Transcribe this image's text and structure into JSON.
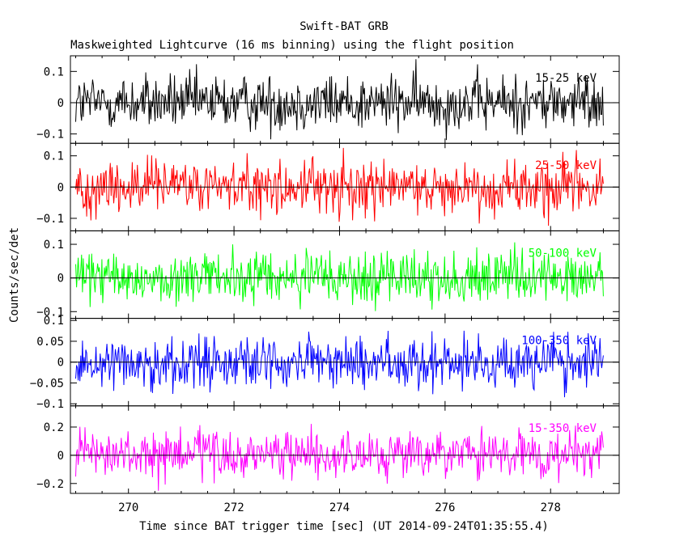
{
  "chart_data": {
    "type": "line",
    "title": "Swift-BAT GRB",
    "subtitle": "Maskweighted Lightcurve (16 ms binning) using the flight position",
    "xlabel": "Time since BAT trigger time [sec] (UT 2014-09-24T01:35:55.4)",
    "ylabel": "Counts/sec/det",
    "xlim": [
      268.9,
      279.3
    ],
    "xticks": [
      "270",
      "272",
      "274",
      "276",
      "278"
    ],
    "xtick_values": [
      270,
      272,
      274,
      276,
      278
    ],
    "x_start": 269.0,
    "x_end": 279.0,
    "bin_width": 0.016,
    "grid": false,
    "panels": [
      {
        "band": "15-25 keV",
        "color": "#000000",
        "ylim": [
          -0.13,
          0.15
        ],
        "yticks": [
          -0.1,
          0,
          0.1
        ],
        "ytick_labels": [
          "−0.1",
          "0",
          "0.1"
        ],
        "noise_sigma": 0.045,
        "baseline": 0
      },
      {
        "band": "25-50 keV",
        "color": "#ff0000",
        "ylim": [
          -0.14,
          0.14
        ],
        "yticks": [
          -0.1,
          0,
          0.1
        ],
        "ytick_labels": [
          "−0.1",
          "0",
          "0.1"
        ],
        "noise_sigma": 0.045,
        "baseline": 0
      },
      {
        "band": "50-100 keV",
        "color": "#00ff00",
        "ylim": [
          -0.12,
          0.14
        ],
        "yticks": [
          -0.1,
          0,
          0.1
        ],
        "ytick_labels": [
          "−0.1",
          "0",
          "0.1"
        ],
        "noise_sigma": 0.04,
        "baseline": 0
      },
      {
        "band": "100-350 keV",
        "color": "#0000ff",
        "ylim": [
          -0.105,
          0.105
        ],
        "yticks": [
          -0.1,
          -0.05,
          0,
          0.05,
          0.1
        ],
        "ytick_labels": [
          "−0.1",
          "−0.05",
          "0",
          "0.05",
          "0.1"
        ],
        "noise_sigma": 0.032,
        "baseline": 0
      },
      {
        "band": "15-350 keV",
        "color": "#ff00ff",
        "ylim": [
          -0.27,
          0.35
        ],
        "yticks": [
          -0.2,
          0,
          0.2
        ],
        "ytick_labels": [
          "−0.2",
          "0",
          "0.2"
        ],
        "noise_sigma": 0.085,
        "baseline": 0
      }
    ]
  }
}
